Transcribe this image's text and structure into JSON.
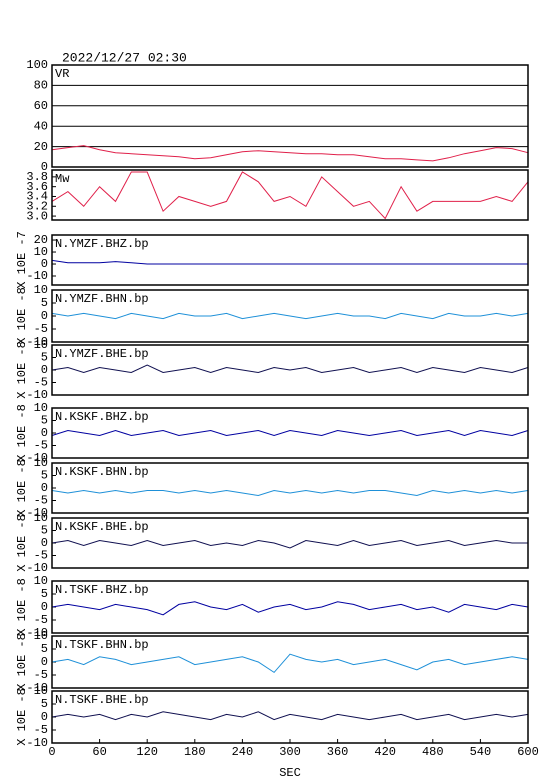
{
  "title": "2022/12/27 02:30",
  "chart_data": [
    {
      "type": "line",
      "label": "VR",
      "color": "#e0204a",
      "grid": true,
      "xlim": [
        0,
        600
      ],
      "ylim": [
        0,
        100
      ],
      "yticks": [
        0,
        20,
        40,
        60,
        80,
        100
      ],
      "x": [
        0,
        20,
        40,
        60,
        80,
        100,
        120,
        140,
        160,
        180,
        200,
        220,
        240,
        260,
        280,
        300,
        320,
        340,
        360,
        380,
        400,
        420,
        440,
        460,
        480,
        500,
        520,
        540,
        560,
        580,
        600
      ],
      "values": [
        17,
        19,
        21,
        17,
        14,
        13,
        12,
        11,
        10,
        8,
        9,
        12,
        15,
        16,
        15,
        14,
        13,
        13,
        12,
        12,
        10,
        8,
        8,
        7,
        6,
        9,
        13,
        16,
        19,
        18,
        14
      ]
    },
    {
      "type": "line",
      "label": "Mw",
      "color": "#e0204a",
      "grid": false,
      "xlim": [
        0,
        600
      ],
      "ylim": [
        2.92,
        3.94
      ],
      "yticks": [
        {
          "value": 3,
          "label": "3.0"
        },
        3.2,
        3.4,
        3.6,
        3.8
      ],
      "x": [
        0,
        20,
        40,
        60,
        80,
        100,
        120,
        140,
        160,
        180,
        200,
        220,
        240,
        260,
        280,
        300,
        320,
        340,
        360,
        380,
        400,
        420,
        440,
        460,
        480,
        500,
        520,
        540,
        560,
        580,
        600
      ],
      "values": [
        3.3,
        3.5,
        3.2,
        3.6,
        3.3,
        3.9,
        3.9,
        3.1,
        3.4,
        3.3,
        3.2,
        3.3,
        3.9,
        3.7,
        3.3,
        3.4,
        3.2,
        3.8,
        3.5,
        3.2,
        3.3,
        2.95,
        3.6,
        3.1,
        3.3,
        3.3,
        3.3,
        3.3,
        3.4,
        3.3,
        3.7
      ]
    },
    {
      "type": "line",
      "label": "N.YMZF.BHZ.bp",
      "ylabel": "X 10E -7",
      "color": "#0000a0",
      "xlim": [
        0,
        600
      ],
      "ylim": [
        -17.5,
        24.2
      ],
      "yticks": [
        -10,
        0,
        10,
        20
      ],
      "x": [
        0,
        20,
        40,
        60,
        80,
        100,
        120,
        140,
        160,
        180,
        200,
        220,
        240,
        260,
        280,
        300,
        320,
        340,
        360,
        380,
        400,
        420,
        440,
        460,
        480,
        500,
        520,
        540,
        560,
        580,
        600
      ],
      "values": [
        3,
        1,
        1,
        1,
        2,
        1,
        0,
        0,
        0,
        0,
        0,
        0,
        0,
        0,
        0,
        0,
        0,
        0,
        0,
        0,
        0,
        0,
        0,
        0,
        0,
        0,
        0,
        0,
        0,
        0,
        0
      ]
    },
    {
      "type": "line",
      "label": "N.YMZF.BHN.bp",
      "ylabel": "X 10E -8",
      "color": "#1e90d8",
      "xlim": [
        0,
        600
      ],
      "ylim": [
        -10,
        10
      ],
      "yticks": [
        -10,
        -5,
        0,
        5,
        10
      ],
      "x": [
        0,
        20,
        40,
        60,
        80,
        100,
        120,
        140,
        160,
        180,
        200,
        220,
        240,
        260,
        280,
        300,
        320,
        340,
        360,
        380,
        400,
        420,
        440,
        460,
        480,
        500,
        520,
        540,
        560,
        580,
        600
      ],
      "values": [
        1,
        0,
        1,
        0,
        -1,
        1,
        0,
        -1,
        1,
        0,
        0,
        1,
        -1,
        0,
        1,
        0,
        -1,
        0,
        1,
        0,
        0,
        -1,
        1,
        0,
        -1,
        1,
        0,
        0,
        1,
        0,
        1
      ]
    },
    {
      "type": "line",
      "label": "N.YMZF.BHE.bp",
      "ylabel": "X 10E -8",
      "color": "#101050",
      "xlim": [
        0,
        600
      ],
      "ylim": [
        -10,
        10
      ],
      "yticks": [
        -10,
        -5,
        0,
        5,
        10
      ],
      "x": [
        0,
        20,
        40,
        60,
        80,
        100,
        120,
        140,
        160,
        180,
        200,
        220,
        240,
        260,
        280,
        300,
        320,
        340,
        360,
        380,
        400,
        420,
        440,
        460,
        480,
        500,
        520,
        540,
        560,
        580,
        600
      ],
      "values": [
        0,
        1,
        -1,
        1,
        0,
        -1,
        2,
        -1,
        0,
        1,
        -1,
        1,
        0,
        -1,
        1,
        0,
        1,
        -1,
        0,
        1,
        -1,
        0,
        1,
        -1,
        1,
        0,
        -1,
        1,
        0,
        -1,
        1
      ]
    },
    {
      "type": "line",
      "label": "N.KSKF.BHZ.bp",
      "ylabel": "X 10E -8",
      "color": "#0000a0",
      "xlim": [
        0,
        600
      ],
      "ylim": [
        -10,
        10
      ],
      "yticks": [
        -10,
        -5,
        0,
        5,
        10
      ],
      "x": [
        0,
        20,
        40,
        60,
        80,
        100,
        120,
        140,
        160,
        180,
        200,
        220,
        240,
        260,
        280,
        300,
        320,
        340,
        360,
        380,
        400,
        420,
        440,
        460,
        480,
        500,
        520,
        540,
        560,
        580,
        600
      ],
      "values": [
        -1,
        1,
        0,
        -1,
        1,
        -1,
        0,
        1,
        -1,
        0,
        1,
        -1,
        0,
        1,
        -1,
        1,
        0,
        -1,
        1,
        0,
        -1,
        0,
        1,
        -1,
        0,
        1,
        -1,
        1,
        0,
        -1,
        1
      ]
    },
    {
      "type": "line",
      "label": "N.KSKF.BHN.bp",
      "ylabel": "X 10E -8",
      "color": "#1e90d8",
      "xlim": [
        0,
        600
      ],
      "ylim": [
        -10,
        10
      ],
      "yticks": [
        -10,
        -5,
        0,
        5,
        10
      ],
      "x": [
        0,
        20,
        40,
        60,
        80,
        100,
        120,
        140,
        160,
        180,
        200,
        220,
        240,
        260,
        280,
        300,
        320,
        340,
        360,
        380,
        400,
        420,
        440,
        460,
        480,
        500,
        520,
        540,
        560,
        580,
        600
      ],
      "values": [
        -1,
        -2,
        -1,
        -2,
        -1,
        -2,
        -1,
        -1,
        -2,
        -1,
        -2,
        -1,
        -2,
        -3,
        -1,
        -2,
        -1,
        -2,
        -1,
        -2,
        -1,
        -1,
        -2,
        -3,
        -1,
        -2,
        -1,
        -2,
        -1,
        -2,
        -1
      ]
    },
    {
      "type": "line",
      "label": "N.KSKF.BHE.bp",
      "ylabel": "X 10E -8",
      "color": "#101050",
      "xlim": [
        0,
        600
      ],
      "ylim": [
        -10,
        10
      ],
      "yticks": [
        -10,
        -5,
        0,
        5,
        10
      ],
      "x": [
        0,
        20,
        40,
        60,
        80,
        100,
        120,
        140,
        160,
        180,
        200,
        220,
        240,
        260,
        280,
        300,
        320,
        340,
        360,
        380,
        400,
        420,
        440,
        460,
        480,
        500,
        520,
        540,
        560,
        580,
        600
      ],
      "values": [
        0,
        1,
        -1,
        1,
        0,
        -1,
        1,
        -1,
        0,
        1,
        -1,
        0,
        -1,
        1,
        0,
        -2,
        1,
        0,
        -1,
        1,
        -1,
        0,
        1,
        -1,
        0,
        1,
        -1,
        0,
        1,
        0,
        0
      ]
    },
    {
      "type": "line",
      "label": "N.TSKF.BHZ.bp",
      "ylabel": "X 10E -8",
      "color": "#0000a0",
      "xlim": [
        0,
        600
      ],
      "ylim": [
        -10,
        10
      ],
      "yticks": [
        -10,
        -5,
        0,
        5,
        10
      ],
      "x": [
        0,
        20,
        40,
        60,
        80,
        100,
        120,
        140,
        160,
        180,
        200,
        220,
        240,
        260,
        280,
        300,
        320,
        340,
        360,
        380,
        400,
        420,
        440,
        460,
        480,
        500,
        520,
        540,
        560,
        580,
        600
      ],
      "values": [
        0,
        1,
        0,
        -1,
        1,
        0,
        -1,
        -3,
        1,
        2,
        0,
        -1,
        1,
        -2,
        0,
        1,
        -1,
        0,
        2,
        1,
        -1,
        0,
        1,
        -1,
        0,
        -2,
        1,
        0,
        -1,
        1,
        0
      ]
    },
    {
      "type": "line",
      "label": "N.TSKF.BHN.bp",
      "ylabel": "X 10E -8",
      "color": "#1e90d8",
      "xlim": [
        0,
        600
      ],
      "ylim": [
        -10,
        10
      ],
      "yticks": [
        -10,
        -5,
        0,
        5,
        10
      ],
      "x": [
        0,
        20,
        40,
        60,
        80,
        100,
        120,
        140,
        160,
        180,
        200,
        220,
        240,
        260,
        280,
        300,
        320,
        340,
        360,
        380,
        400,
        420,
        440,
        460,
        480,
        500,
        520,
        540,
        560,
        580,
        600
      ],
      "values": [
        0,
        1,
        -1,
        2,
        1,
        -1,
        0,
        1,
        2,
        -1,
        0,
        1,
        2,
        0,
        -4,
        3,
        1,
        0,
        1,
        -1,
        0,
        1,
        -1,
        -3,
        0,
        1,
        -1,
        0,
        1,
        2,
        1
      ]
    },
    {
      "type": "line",
      "label": "N.TSKF.BHE.bp",
      "ylabel": "X 10E -8",
      "color": "#101050",
      "xlim": [
        0,
        600
      ],
      "ylim": [
        -10,
        10
      ],
      "yticks": [
        -10,
        -5,
        0,
        5,
        10
      ],
      "xticks": [
        0,
        60,
        120,
        180,
        240,
        300,
        360,
        420,
        480,
        540,
        600
      ],
      "xlabel": "SEC",
      "x": [
        0,
        20,
        40,
        60,
        80,
        100,
        120,
        140,
        160,
        180,
        200,
        220,
        240,
        260,
        280,
        300,
        320,
        340,
        360,
        380,
        400,
        420,
        440,
        460,
        480,
        500,
        520,
        540,
        560,
        580,
        600
      ],
      "values": [
        0,
        1,
        0,
        1,
        -1,
        1,
        0,
        2,
        1,
        0,
        -1,
        1,
        0,
        2,
        -1,
        1,
        0,
        -1,
        1,
        0,
        -1,
        0,
        1,
        -1,
        0,
        1,
        -1,
        0,
        1,
        0,
        1
      ]
    }
  ]
}
